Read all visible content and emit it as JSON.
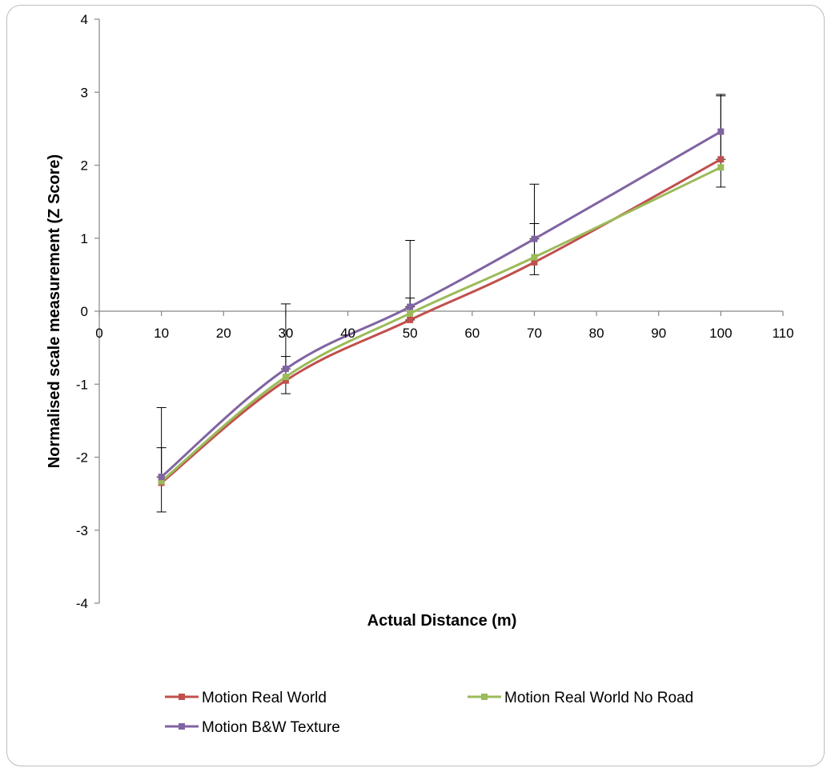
{
  "chart_data": {
    "type": "line",
    "title": "",
    "xlabel": "Actual Distance (m)",
    "ylabel": "Normalised scale measurement (Z Score)",
    "xlim": [
      0,
      110
    ],
    "ylim": [
      -4,
      4
    ],
    "x_ticks": [
      0,
      10,
      20,
      30,
      40,
      50,
      60,
      70,
      80,
      90,
      100,
      110
    ],
    "y_ticks": [
      4,
      3,
      2,
      1,
      0,
      -1,
      -2,
      -3,
      -4
    ],
    "grid": false,
    "legend_position": "bottom",
    "x": [
      10,
      30,
      50,
      70,
      100
    ],
    "series": [
      {
        "name": "Motion Real World",
        "color": "#c0504d",
        "values": [
          -2.35,
          -0.95,
          -0.12,
          0.67,
          2.08
        ],
        "error_upper": [
          -1.87,
          -0.62,
          0.18,
          1.2,
          2.95
        ],
        "error_lower": [
          -2.75,
          -1.13,
          -0.12,
          0.5,
          2.08
        ]
      },
      {
        "name": "Motion Real World No Road",
        "color": "#9bbb59",
        "values": [
          -2.33,
          -0.9,
          -0.03,
          0.74,
          1.97
        ],
        "error_upper": [
          -2.33,
          -0.9,
          -0.03,
          0.74,
          1.97
        ],
        "error_lower": [
          -2.33,
          -0.9,
          -0.03,
          0.74,
          1.97
        ]
      },
      {
        "name": "Motion B&W Texture",
        "color": "#8064a2",
        "values": [
          -2.27,
          -0.79,
          0.06,
          0.99,
          2.46
        ],
        "error_upper": [
          -1.32,
          0.1,
          0.97,
          1.74,
          2.97
        ],
        "error_lower": [
          -2.27,
          -0.79,
          0.06,
          0.99,
          1.7
        ]
      }
    ]
  }
}
